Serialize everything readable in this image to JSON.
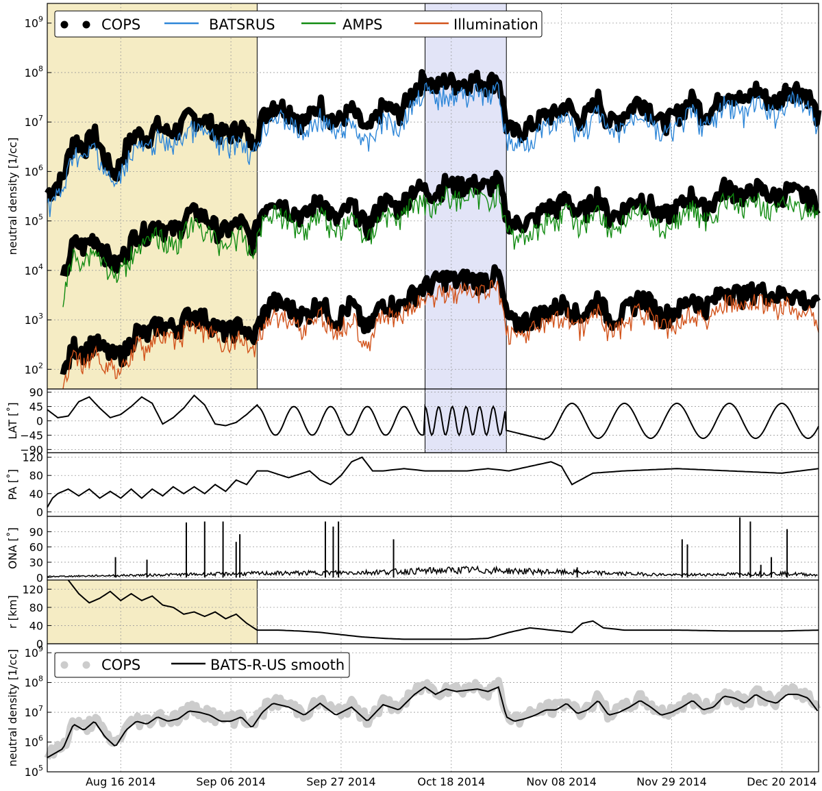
{
  "colors": {
    "cops": "#000000",
    "batsrus": "#2d86d8",
    "amps": "#118b11",
    "illumination": "#d2531b",
    "cops_smooth_bg": "#cccccc",
    "highlight_yellow": "#f5ecc4",
    "highlight_blue": "#e2e4f7"
  },
  "x_axis": {
    "tick_labels": [
      "Aug 16 2014",
      "Sep 06 2014",
      "Sep 27 2014",
      "Oct 18 2014",
      "Nov 08 2014",
      "Nov 29 2014",
      "Dec 20 2014"
    ],
    "range_days": [
      0,
      147
    ]
  },
  "shaded_periods": [
    {
      "color": "yellow",
      "start_day": 0,
      "end_day": 40
    },
    {
      "color": "blue",
      "start_day": 72,
      "end_day": 87.5
    }
  ],
  "chart_data": [
    {
      "type": "line",
      "panel": "density",
      "ylabel": "neutral density [1/cc]",
      "yscale": "log",
      "ylim": [
        40,
        2500000000
      ],
      "ytick_labels": [
        "10^2",
        "10^3",
        "10^4",
        "10^5",
        "10^6",
        "10^7",
        "10^8",
        "10^9"
      ],
      "legend": [
        "COPS",
        "BATSRUS",
        "AMPS",
        "Illumination"
      ],
      "series": [
        {
          "name": "BATSRUS",
          "x_days": [
            0,
            3,
            5,
            7,
            9,
            11,
            13,
            15,
            17,
            19,
            21,
            23,
            25,
            27,
            29,
            31,
            33,
            35,
            37,
            39,
            41,
            43,
            46,
            49,
            52,
            55,
            58,
            61,
            64,
            67,
            70,
            72,
            74,
            76,
            78,
            80,
            82,
            84,
            86,
            87.5,
            89,
            91,
            93,
            95,
            97,
            99,
            101,
            103,
            105,
            107,
            109,
            111,
            113,
            115,
            117,
            119,
            121,
            123,
            125,
            127,
            129,
            131,
            133,
            135,
            137,
            139,
            141,
            143,
            145,
            147
          ],
          "values": [
            300000,
            600000,
            4000000,
            2500000,
            5000000,
            1500000,
            700000,
            2500000,
            5000000,
            4000000,
            7000000,
            5000000,
            6000000,
            11000000,
            10000000,
            8000000,
            5000000,
            5000000,
            7000000,
            3000000,
            10000000,
            20000000,
            15000000,
            8000000,
            20000000,
            8000000,
            15000000,
            5000000,
            18000000,
            12000000,
            40000000,
            70000000,
            40000000,
            60000000,
            50000000,
            55000000,
            60000000,
            50000000,
            70000000,
            7000000,
            5000000,
            6000000,
            8000000,
            12000000,
            12000000,
            20000000,
            9000000,
            12000000,
            25000000,
            8000000,
            10000000,
            15000000,
            25000000,
            15000000,
            8000000,
            10000000,
            15000000,
            25000000,
            12000000,
            15000000,
            35000000,
            30000000,
            20000000,
            40000000,
            25000000,
            20000000,
            40000000,
            40000000,
            30000000,
            10000000
          ]
        },
        {
          "name": "AMPS",
          "x_days": [
            3,
            5,
            7,
            9,
            11,
            13,
            15,
            17,
            19,
            21,
            23,
            25,
            27,
            29,
            31,
            33,
            35,
            37,
            39,
            41,
            43,
            46,
            49,
            52,
            55,
            58,
            61,
            64,
            67,
            70,
            72,
            74,
            76,
            78,
            80,
            82,
            84,
            86,
            87.5,
            89,
            91,
            93,
            95,
            97,
            99,
            101,
            103,
            105,
            107,
            109,
            111,
            113,
            115,
            117,
            119,
            121,
            123,
            125,
            127,
            129,
            131,
            133,
            135,
            137,
            139,
            141,
            143,
            145,
            147
          ],
          "values": [
            5000,
            30000,
            25000,
            40000,
            20000,
            10000,
            20000,
            50000,
            50000,
            80000,
            50000,
            60000,
            120000,
            120000,
            80000,
            50000,
            60000,
            80000,
            30000,
            140000,
            250000,
            150000,
            100000,
            250000,
            80000,
            180000,
            60000,
            220000,
            150000,
            400000,
            350000,
            300000,
            500000,
            400000,
            500000,
            450000,
            400000,
            600000,
            100000,
            70000,
            80000,
            90000,
            160000,
            150000,
            250000,
            120000,
            150000,
            300000,
            100000,
            120000,
            180000,
            250000,
            180000,
            100000,
            130000,
            180000,
            300000,
            150000,
            200000,
            400000,
            350000,
            250000,
            400000,
            300000,
            250000,
            350000,
            300000,
            250000,
            200000
          ]
        },
        {
          "name": "Illumination",
          "x_days": [
            3,
            5,
            7,
            9,
            11,
            13,
            15,
            17,
            19,
            21,
            23,
            25,
            27,
            29,
            31,
            33,
            35,
            37,
            39,
            41,
            43,
            46,
            49,
            52,
            55,
            58,
            61,
            64,
            67,
            70,
            72,
            74,
            76,
            78,
            80,
            82,
            84,
            86,
            87.5,
            89,
            91,
            93,
            95,
            97,
            99,
            101,
            103,
            105,
            107,
            109,
            111,
            113,
            115,
            117,
            119,
            121,
            123,
            125,
            127,
            129,
            131,
            133,
            135,
            137,
            139,
            141,
            143,
            145,
            147
          ],
          "values": [
            60,
            250,
            200,
            300,
            200,
            150,
            200,
            500,
            400,
            700,
            600,
            600,
            1100,
            1000,
            800,
            500,
            500,
            700,
            300,
            1000,
            2000,
            1500,
            1000,
            2000,
            800,
            1800,
            500,
            2000,
            1500,
            3000,
            4000,
            5000,
            6000,
            5000,
            6000,
            5000,
            6000,
            7000,
            1000,
            700,
            800,
            1000,
            1200,
            1500,
            2000,
            1000,
            1200,
            2500,
            900,
            1000,
            1500,
            2500,
            1800,
            1000,
            1200,
            1500,
            2500,
            1500,
            2000,
            3500,
            3000,
            2500,
            3500,
            3000,
            2500,
            3000,
            2500,
            2000,
            1500
          ]
        }
      ]
    },
    {
      "type": "line",
      "panel": "latitude",
      "ylabel": "LAT [˚]",
      "ylim": [
        -100,
        100
      ],
      "ytick_labels": [
        "90",
        "45",
        "0",
        "−45",
        "−90"
      ],
      "series": [
        {
          "x_days": [
            0,
            2,
            4,
            6,
            8,
            10,
            12,
            14,
            16,
            18,
            20,
            22,
            24,
            26,
            28,
            30,
            32,
            34,
            36,
            38,
            40
          ],
          "values": [
            35,
            10,
            15,
            60,
            75,
            40,
            10,
            20,
            45,
            75,
            55,
            -10,
            10,
            40,
            80,
            50,
            -10,
            -15,
            -5,
            20,
            50
          ]
        }
      ]
    },
    {
      "type": "line",
      "panel": "phase-angle",
      "ylabel": "PA [˚]",
      "ylim": [
        -10,
        130
      ],
      "ytick_labels": [
        "120",
        "80",
        "40",
        "0"
      ],
      "series": [
        {
          "x_days": [
            0,
            1,
            2,
            4,
            6,
            8,
            10,
            12,
            14,
            16,
            18,
            20,
            22,
            24,
            26,
            28,
            30,
            32,
            34,
            36,
            38,
            40,
            42,
            46,
            50,
            52,
            54,
            56,
            58,
            60,
            62,
            64,
            68,
            72,
            76,
            80,
            84,
            88,
            92,
            96,
            98,
            99,
            100,
            104,
            110,
            120,
            130,
            140,
            147
          ],
          "values": [
            10,
            30,
            40,
            50,
            35,
            50,
            30,
            45,
            30,
            50,
            30,
            50,
            35,
            55,
            40,
            55,
            40,
            60,
            45,
            70,
            60,
            90,
            90,
            75,
            90,
            70,
            60,
            80,
            110,
            120,
            90,
            90,
            95,
            90,
            90,
            90,
            95,
            90,
            100,
            110,
            100,
            80,
            60,
            85,
            90,
            95,
            90,
            85,
            95
          ]
        }
      ]
    },
    {
      "type": "line",
      "panel": "off-nadir-angle",
      "ylabel": "ONA [˚]",
      "ylim": [
        -5,
        120
      ],
      "ytick_labels": [
        "90",
        "60",
        "30",
        "0"
      ],
      "series": [
        {
          "x_days": [
            0,
            20,
            40,
            60,
            80,
            100,
            120,
            140,
            147
          ],
          "values": [
            2,
            5,
            8,
            10,
            15,
            10,
            5,
            8,
            5
          ]
        }
      ]
    },
    {
      "type": "line",
      "panel": "distance",
      "ylabel": "r [km]",
      "ylim": [
        0,
        140
      ],
      "ytick_labels": [
        "120",
        "80",
        "40",
        "0"
      ],
      "series": [
        {
          "x_days": [
            4,
            6,
            8,
            10,
            12,
            14,
            16,
            18,
            20,
            22,
            24,
            26,
            28,
            30,
            32,
            34,
            36,
            38,
            40,
            44,
            48,
            52,
            56,
            60,
            64,
            68,
            72,
            76,
            80,
            84,
            88,
            92,
            96,
            100,
            102,
            104,
            106,
            110,
            120,
            130,
            140,
            147
          ],
          "values": [
            140,
            110,
            90,
            100,
            115,
            95,
            110,
            95,
            105,
            85,
            80,
            65,
            70,
            60,
            70,
            55,
            65,
            45,
            30,
            30,
            28,
            25,
            20,
            15,
            12,
            10,
            10,
            10,
            10,
            12,
            25,
            35,
            30,
            25,
            45,
            50,
            35,
            30,
            30,
            28,
            28,
            30
          ]
        }
      ]
    },
    {
      "type": "line",
      "panel": "density-smooth",
      "ylabel": "neutral density [1/cc]",
      "yscale": "log",
      "ylim": [
        100000,
        2000000000
      ],
      "ytick_labels": [
        "10^5",
        "10^6",
        "10^7",
        "10^8",
        "10^9"
      ],
      "legend": [
        "COPS",
        "BATS-R-US smooth"
      ],
      "series": [
        {
          "name": "BATS-R-US smooth",
          "x_days": [
            0,
            3,
            5,
            7,
            9,
            11,
            13,
            15,
            17,
            19,
            21,
            23,
            25,
            27,
            29,
            31,
            33,
            35,
            37,
            39,
            41,
            43,
            46,
            49,
            52,
            55,
            58,
            61,
            64,
            67,
            70,
            72,
            74,
            76,
            78,
            80,
            82,
            84,
            86,
            87.5,
            89,
            91,
            93,
            95,
            97,
            99,
            101,
            103,
            105,
            107,
            109,
            111,
            113,
            115,
            117,
            119,
            121,
            123,
            125,
            127,
            129,
            131,
            133,
            135,
            137,
            139,
            141,
            143,
            145,
            147
          ],
          "values": [
            300000,
            600000,
            4000000,
            2500000,
            5000000,
            1500000,
            700000,
            2500000,
            5000000,
            4000000,
            7000000,
            5000000,
            6000000,
            11000000,
            10000000,
            8000000,
            5000000,
            5000000,
            7000000,
            3000000,
            10000000,
            20000000,
            15000000,
            8000000,
            20000000,
            8000000,
            15000000,
            5000000,
            18000000,
            12000000,
            40000000,
            70000000,
            40000000,
            60000000,
            50000000,
            55000000,
            60000000,
            50000000,
            70000000,
            7000000,
            5000000,
            6000000,
            8000000,
            12000000,
            12000000,
            20000000,
            9000000,
            12000000,
            25000000,
            8000000,
            10000000,
            15000000,
            25000000,
            15000000,
            8000000,
            10000000,
            15000000,
            25000000,
            12000000,
            15000000,
            35000000,
            30000000,
            20000000,
            40000000,
            25000000,
            20000000,
            40000000,
            40000000,
            30000000,
            10000000
          ]
        }
      ]
    }
  ]
}
